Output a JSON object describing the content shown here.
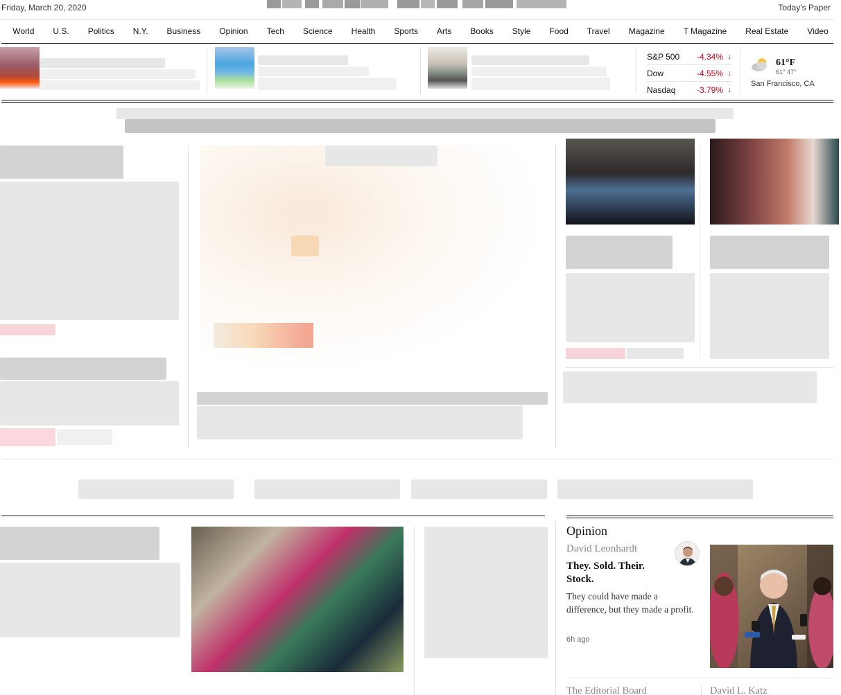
{
  "masthead": {
    "date": "Friday, March 20, 2020",
    "todays_paper": "Today's Paper"
  },
  "nav": {
    "items": [
      "World",
      "U.S.",
      "Politics",
      "N.Y.",
      "Business",
      "Opinion",
      "Tech",
      "Science",
      "Health",
      "Sports",
      "Arts",
      "Books",
      "Style",
      "Food",
      "Travel",
      "Magazine",
      "T Magazine",
      "Real Estate",
      "Video"
    ]
  },
  "markets": [
    {
      "name": "S&P 500",
      "change": "-4.34%"
    },
    {
      "name": "Dow",
      "change": "-4.55%"
    },
    {
      "name": "Nasdaq",
      "change": "-3.79%"
    }
  ],
  "weather": {
    "temp": "61°F",
    "range": "61° 47°",
    "city": "San Francisco, CA"
  },
  "opinion": {
    "section_title": "Opinion",
    "author": "David Leonhardt",
    "headline": "They. Sold. Their. Stock.",
    "summary": "They could have made a difference, but they made a profit.",
    "time": "6h ago",
    "next_author_1": "The Editorial Board",
    "next_author_2": "David L. Katz"
  },
  "colors": {
    "market_down": "#d0021b",
    "rule": "#121212",
    "light_rule": "#e2e2e2"
  }
}
